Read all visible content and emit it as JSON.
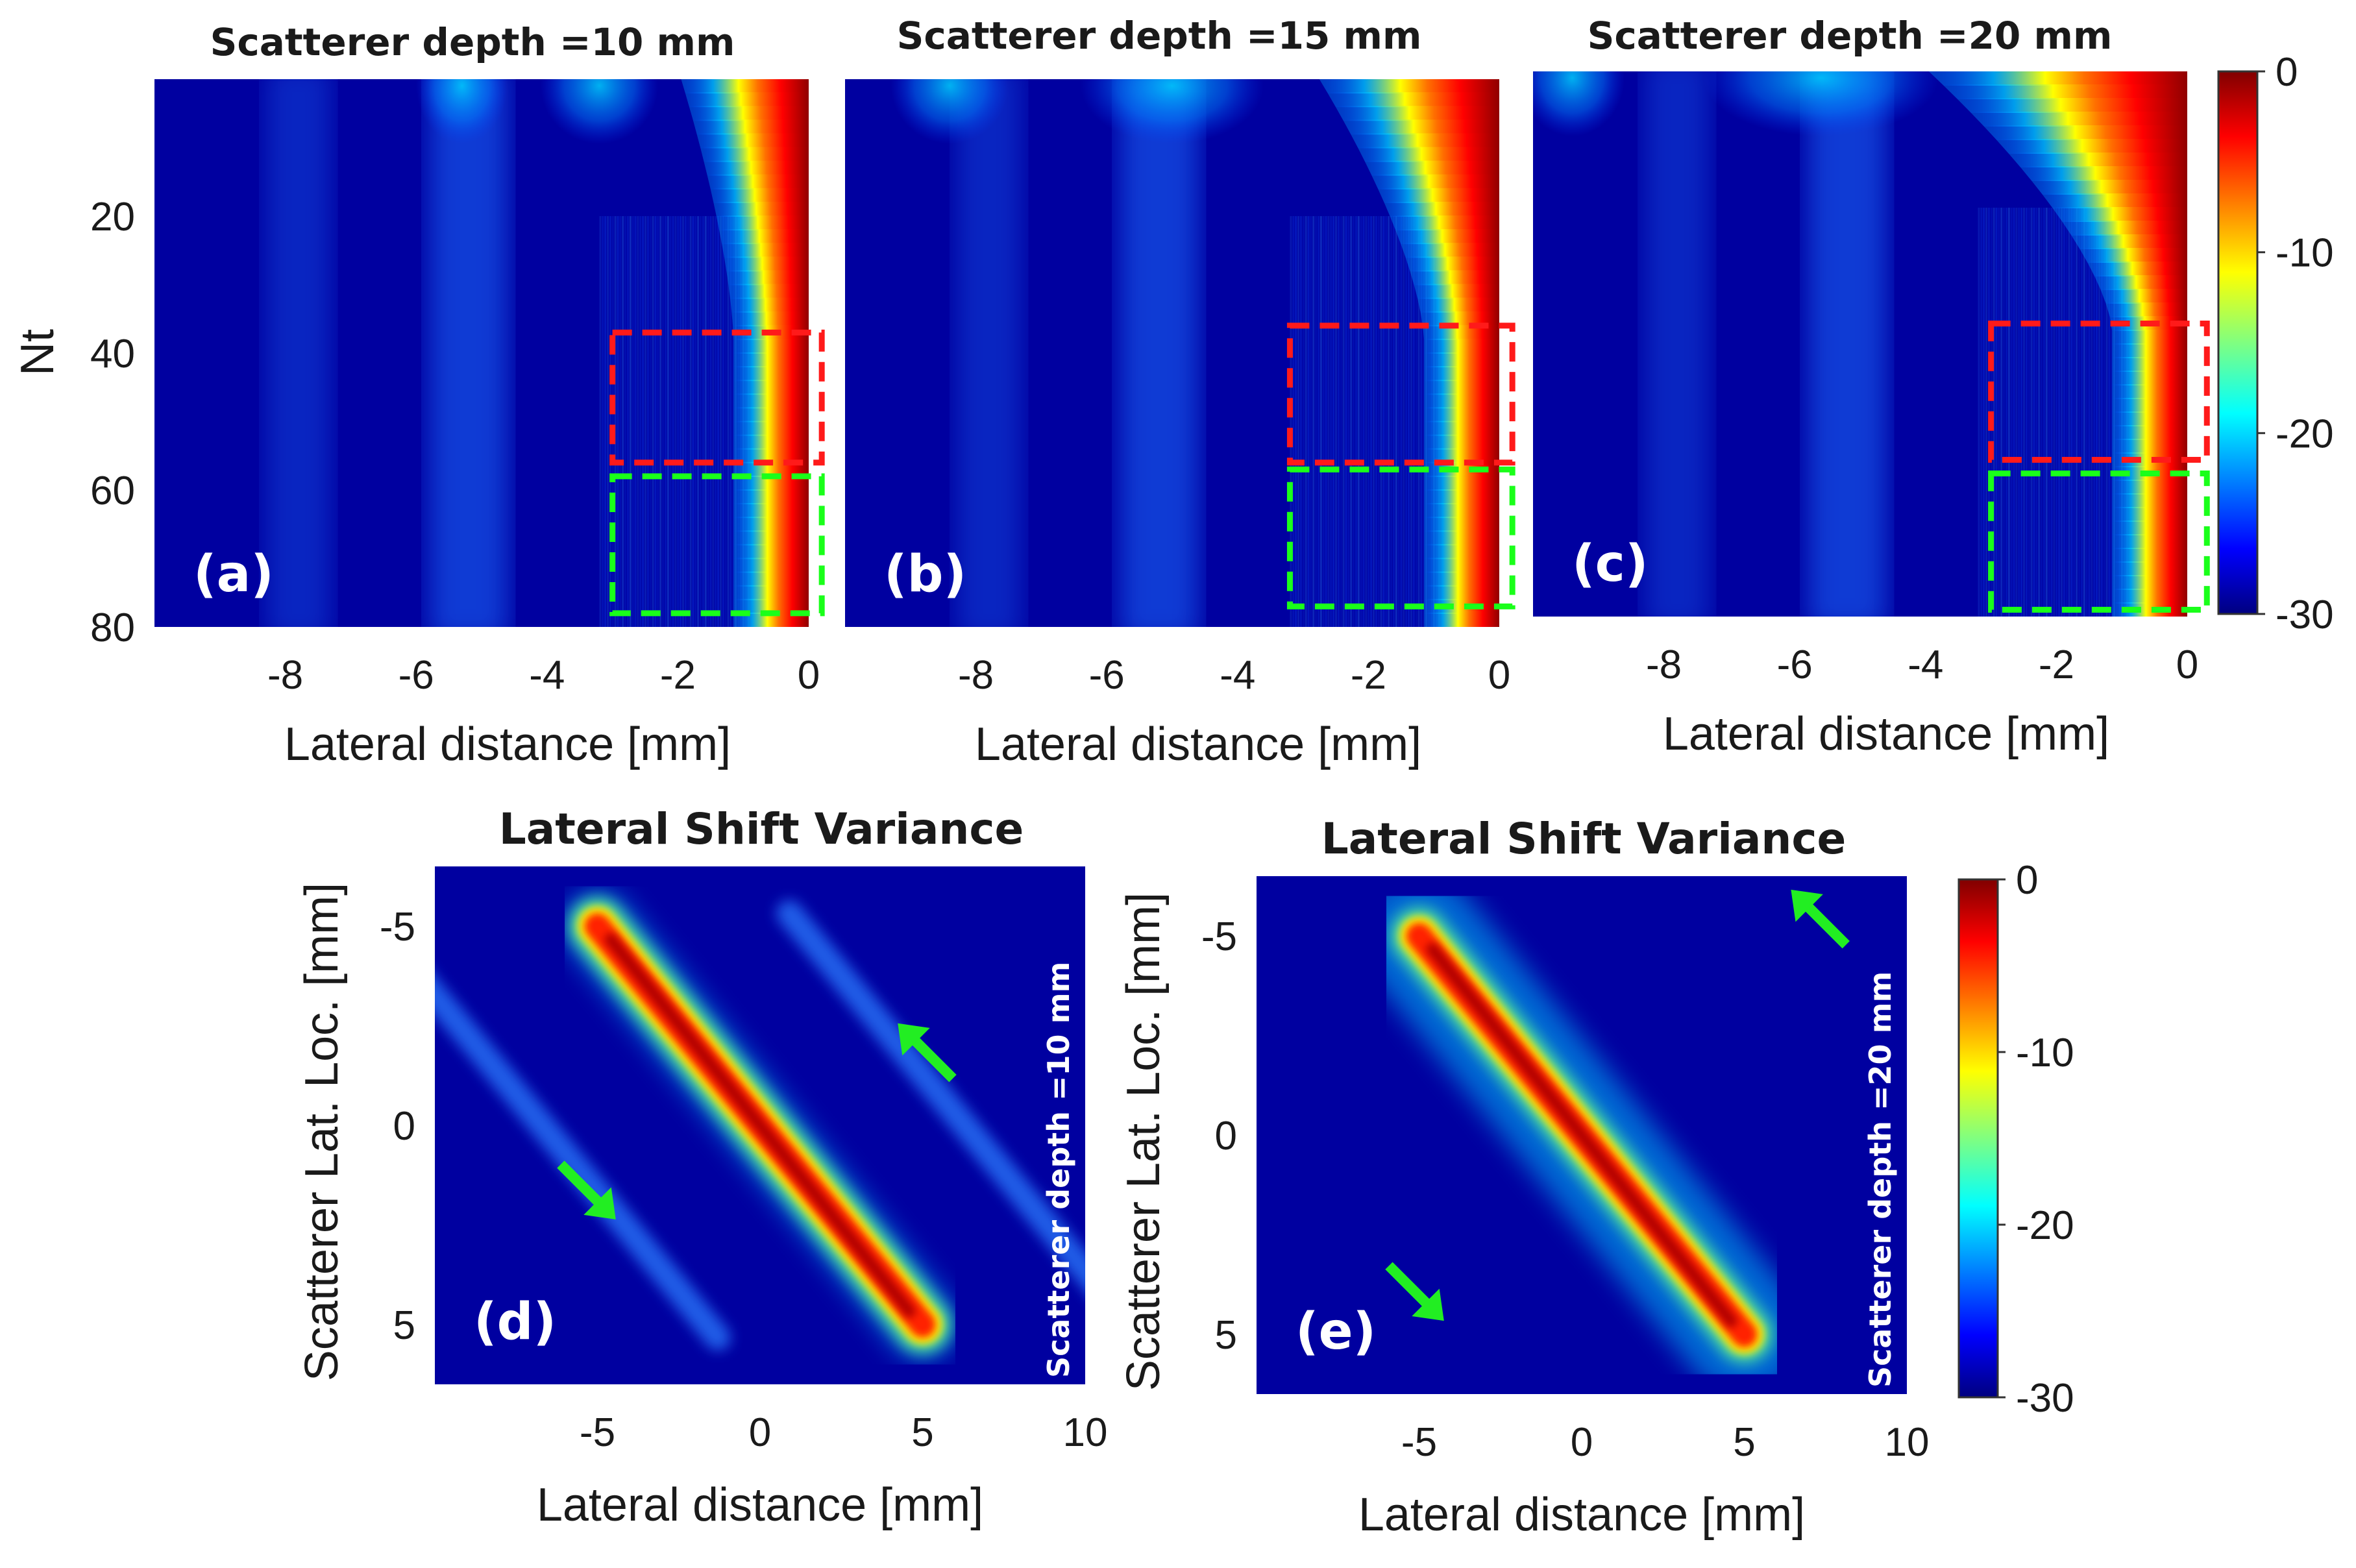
{
  "colors": {
    "background": "#0000a0",
    "red_box": "#ff1a1a",
    "green_box": "#1aff1a",
    "arrow": "#22ee22"
  },
  "icons": {
    "arrow": "green-arrow-icon"
  },
  "chart_data": [
    {
      "id": "a",
      "type": "heatmap",
      "title": "Scatterer depth =10 mm",
      "panel_label": "(a)",
      "xlabel": "Lateral distance [mm]",
      "ylabel": "Nt",
      "xlim": [
        -10,
        0
      ],
      "ylim": [
        0,
        80
      ],
      "xticks": [
        -8,
        -6,
        -4,
        -2,
        0
      ],
      "yticks": [
        20,
        40,
        60,
        80
      ],
      "xtick_labels": [
        "-8",
        "-6",
        "-4",
        "-2",
        "0"
      ],
      "ytick_labels": [
        "20",
        "40",
        "60",
        "80"
      ],
      "depth_mm": 10,
      "boxes": [
        {
          "color": "red",
          "x": [
            -3,
            0.2
          ],
          "y": [
            37,
            56
          ]
        },
        {
          "color": "green",
          "x": [
            -3,
            0.2
          ],
          "y": [
            58,
            78
          ]
        }
      ]
    },
    {
      "id": "b",
      "type": "heatmap",
      "title": "Scatterer depth =15 mm",
      "panel_label": "(b)",
      "xlabel": "Lateral distance [mm]",
      "ylabel": "",
      "xlim": [
        -10,
        0
      ],
      "ylim": [
        0,
        80
      ],
      "xticks": [
        -8,
        -6,
        -4,
        -2,
        0
      ],
      "xtick_labels": [
        "-8",
        "-6",
        "-4",
        "-2",
        "0"
      ],
      "depth_mm": 15,
      "boxes": [
        {
          "color": "red",
          "x": [
            -3.2,
            0.2
          ],
          "y": [
            36,
            56
          ]
        },
        {
          "color": "green",
          "x": [
            -3.2,
            0.2
          ],
          "y": [
            57,
            77
          ]
        }
      ]
    },
    {
      "id": "c",
      "type": "heatmap",
      "title": "Scatterer depth =20 mm",
      "panel_label": "(c)",
      "xlabel": "Lateral distance [mm]",
      "ylabel": "",
      "xlim": [
        -10,
        0
      ],
      "ylim": [
        0,
        80
      ],
      "xticks": [
        -8,
        -6,
        -4,
        -2,
        0
      ],
      "xtick_labels": [
        "-8",
        "-6",
        "-4",
        "-2",
        "0"
      ],
      "depth_mm": 20,
      "colorbar": {
        "ticks": [
          "0",
          "-10",
          "-20",
          "-30"
        ],
        "range": [
          -30,
          0
        ]
      },
      "boxes": [
        {
          "color": "red",
          "x": [
            -3,
            0.3
          ],
          "y": [
            37,
            57
          ]
        },
        {
          "color": "green",
          "x": [
            -3,
            0.3
          ],
          "y": [
            59,
            79
          ]
        }
      ]
    },
    {
      "id": "d",
      "type": "heatmap",
      "title": "Lateral Shift Variance",
      "panel_label": "(d)",
      "inlay_label": "Scatterer depth =10 mm",
      "xlabel": "Lateral distance [mm]",
      "ylabel": "Scatterer Lat. Loc. [mm]",
      "xlim": [
        -10,
        10
      ],
      "ylim": [
        -6.5,
        6.5
      ],
      "xticks": [
        -5,
        0,
        5,
        10
      ],
      "yticks": [
        -5,
        0,
        5
      ],
      "xtick_labels": [
        "-5",
        "0",
        "5",
        "10"
      ],
      "ytick_labels": [
        "-5",
        "0",
        "5"
      ],
      "main_diagonal": {
        "from": [
          -5,
          -5
        ],
        "to": [
          5,
          5
        ]
      },
      "side_lobes": true,
      "arrows": [
        {
          "x": 4.8,
          "y": -2.1
        },
        {
          "x": -5,
          "y": 1.9
        }
      ]
    },
    {
      "id": "e",
      "type": "heatmap",
      "title": "Lateral Shift Variance",
      "panel_label": "(e)",
      "inlay_label": "Scatterer depth =20 mm",
      "xlabel": "Lateral distance [mm]",
      "ylabel": "Scatterer Lat. Loc. [mm]",
      "xlim": [
        -10,
        10
      ],
      "ylim": [
        -6.5,
        6.5
      ],
      "xticks": [
        -5,
        0,
        5,
        10
      ],
      "yticks": [
        -5,
        0,
        5
      ],
      "xtick_labels": [
        "-5",
        "0",
        "5",
        "10"
      ],
      "ytick_labels": [
        "-5",
        "0",
        "5"
      ],
      "colorbar": {
        "ticks": [
          "0",
          "-10",
          "-20",
          "-30"
        ],
        "range": [
          -30,
          0
        ]
      },
      "main_diagonal": {
        "from": [
          -5,
          -5
        ],
        "to": [
          5,
          5
        ]
      },
      "side_lobes": false,
      "arrows": [
        {
          "x": 7,
          "y": -5.7
        },
        {
          "x": -4.8,
          "y": 4.2
        }
      ]
    }
  ]
}
